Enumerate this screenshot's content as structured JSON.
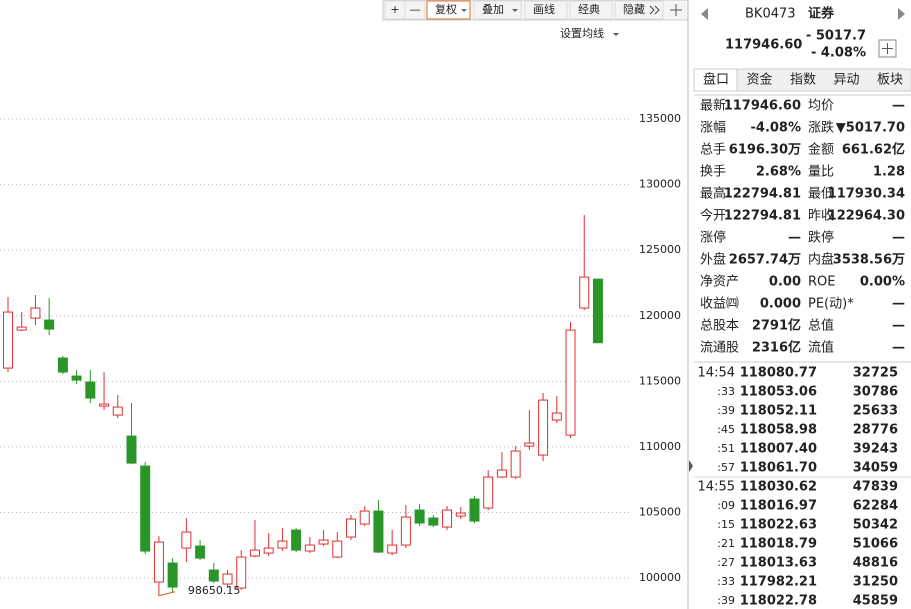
{
  "toolbar": [
    "+",
    "—",
    "复权",
    "叠加",
    "画线",
    "经典",
    "隐藏"
  ],
  "chart_data": {
    "type": "candlestick",
    "menu": "设置均线",
    "annotation": "98650.15",
    "ylim": [
      97640,
      144080
    ],
    "yticks": [
      100000,
      105000,
      110000,
      115000,
      120000,
      125000,
      130000,
      135000
    ],
    "grid": true,
    "up_color": "#e03030",
    "down_color": "#2a962a",
    "open": [
      116013,
      118910,
      119825,
      119673,
      116775,
      115403,
      114945,
      113115,
      112429,
      110828,
      108540,
      99695,
      101144,
      102288,
      102440,
      100610,
      99543,
      99238,
      101678,
      101906,
      102288,
      103660,
      102059,
      102593,
      101601,
      103126,
      104118,
      105109,
      101906,
      102516,
      105185,
      104575,
      103889,
      104728,
      106024,
      105338,
      107701,
      107701,
      110065,
      109379,
      112048,
      110904,
      120588,
      122794.81
    ],
    "high": [
      121426,
      120283,
      121579,
      121350,
      116928,
      115860,
      115860,
      115708,
      113954,
      113344,
      108845,
      103203,
      101525,
      104575,
      102898,
      101144,
      100610,
      102135,
      104423,
      103431,
      103813,
      103813,
      103126,
      103660,
      103508,
      104804,
      105490,
      105948,
      103660,
      105566,
      105643,
      104804,
      105490,
      105414,
      106253,
      108235,
      109608,
      110065,
      112810,
      114106,
      113878,
      119520,
      127679,
      122794.81
    ],
    "low": [
      115708,
      118834,
      119291,
      118529,
      115556,
      114793,
      113344,
      112810,
      112200,
      108693,
      101830,
      98650.15,
      98933,
      101220,
      101373,
      99619,
      99238,
      99085,
      101601,
      101678,
      102059,
      101983,
      101906,
      102440,
      101525,
      102898,
      103965,
      101906,
      101754,
      102288,
      103965,
      103889,
      103660,
      104499,
      104194,
      105185,
      107625,
      107549,
      109760,
      108921,
      111819,
      110675,
      120435,
      117930.34
    ],
    "close": [
      120283,
      119139,
      120588,
      118986,
      115708,
      115098,
      113725,
      113268,
      113039,
      108769,
      102059,
      102745,
      99314,
      103508,
      101525,
      99771,
      100305,
      101601,
      102135,
      102288,
      102821,
      102135,
      102516,
      102898,
      102821,
      104499,
      105109,
      101983,
      102516,
      104651,
      104194,
      104041,
      105185,
      104956,
      104346,
      107701,
      108235,
      109684,
      110294,
      113573,
      112581,
      118910,
      122951,
      117946.6
    ]
  },
  "quote": {
    "code": "BK0473",
    "name": "证券",
    "price": "117946.60",
    "change": "- 5017.7",
    "pct": "- 4.08%",
    "tabs": [
      "盘口",
      "资金",
      "指数",
      "异动",
      "板块"
    ],
    "rows": [
      {
        "label": "最新",
        "value": "117946.60",
        "color": "#119911"
      },
      {
        "label": "均价",
        "value": "—",
        "color": "#222"
      },
      {
        "label": "涨幅",
        "value": "-4.08%",
        "color": "#119911"
      },
      {
        "label": "涨跌",
        "value": "▼5017.70",
        "color": "#119911"
      },
      {
        "label": "总手",
        "value": "6196.30万",
        "color": "#222"
      },
      {
        "label": "金额",
        "value": "661.62亿",
        "color": "#1a6aa8"
      },
      {
        "label": "换手",
        "value": "2.68%",
        "color": "#222"
      },
      {
        "label": "量比",
        "value": "1.28",
        "color": "#e02020"
      },
      {
        "label": "最高",
        "value": "122794.81",
        "color": "#119911"
      },
      {
        "label": "最低",
        "value": "117930.34",
        "color": "#119911"
      },
      {
        "label": "今开",
        "value": "122794.81",
        "color": "#119911"
      },
      {
        "label": "昨收",
        "value": "122964.30",
        "color": "#222"
      },
      {
        "label": "涨停",
        "value": "—",
        "color": "#e02020"
      },
      {
        "label": "跌停",
        "value": "—",
        "color": "#119911"
      },
      {
        "label": "外盘",
        "value": "2657.74万",
        "color": "#e02020"
      },
      {
        "label": "内盘",
        "value": "3538.56万",
        "color": "#119911"
      },
      {
        "label": "净资产",
        "value": "0.00",
        "color": "#222"
      },
      {
        "label": "ROE",
        "value": "0.00%",
        "color": "#222"
      },
      {
        "label": "收益㈣",
        "value": "0.000",
        "color": "#222"
      },
      {
        "label": "PE(动)*",
        "value": "—",
        "color": "#222"
      },
      {
        "label": "总股本",
        "value": "2791亿",
        "color": "#222"
      },
      {
        "label": "总值",
        "value": "—",
        "color": "#222"
      },
      {
        "label": "流通股",
        "value": "2316亿",
        "color": "#222"
      },
      {
        "label": "流值",
        "value": "—",
        "color": "#222"
      }
    ]
  },
  "trades": [
    {
      "time": "14:54",
      "price": "118080.77",
      "volume": "32725",
      "color": "#e02020"
    },
    {
      "time": ":33",
      "price": "118053.06",
      "volume": "30786",
      "color": "#119911"
    },
    {
      "time": ":39",
      "price": "118052.11",
      "volume": "25633",
      "color": "#119911"
    },
    {
      "time": ":45",
      "price": "118058.98",
      "volume": "28776",
      "color": "#e02020"
    },
    {
      "time": ":51",
      "price": "118007.40",
      "volume": "39243",
      "color": "#119911"
    },
    {
      "time": ":57",
      "price": "118061.70",
      "volume": "34059",
      "color": "#e02020"
    },
    {
      "time": "14:55",
      "price": "118030.62",
      "volume": "47839",
      "color": "#119911"
    },
    {
      "time": ":09",
      "price": "118016.97",
      "volume": "62284",
      "color": "#119911"
    },
    {
      "time": ":15",
      "price": "118022.63",
      "volume": "50342",
      "color": "#e02020"
    },
    {
      "time": ":21",
      "price": "118018.79",
      "volume": "51066",
      "color": "#119911"
    },
    {
      "time": ":27",
      "price": "118013.63",
      "volume": "48816",
      "color": "#119911"
    },
    {
      "time": ":33",
      "price": "117982.21",
      "volume": "31250",
      "color": "#119911"
    },
    {
      "time": ":39",
      "price": "118022.78",
      "volume": "45859",
      "color": "#e02020"
    }
  ]
}
